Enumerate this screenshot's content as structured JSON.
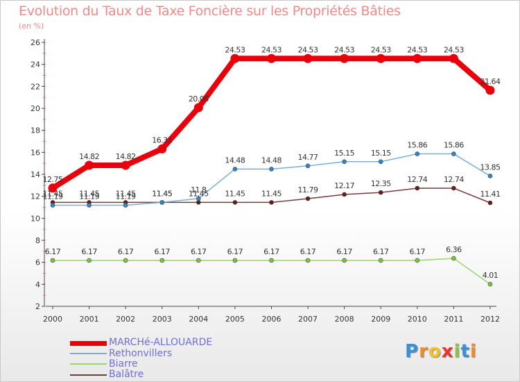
{
  "header": {
    "title": "Evolution du Taux de Taxe Foncière sur les Propriétés Bâties",
    "subtitle": "(en %)"
  },
  "logo": {
    "letters": [
      "P",
      "r",
      "o",
      "x",
      "i",
      "t",
      "i"
    ],
    "colors": [
      "#3a8fd6",
      "#f08a2a",
      "#f5c028",
      "#e8342c",
      "#8cc63f",
      "#3a8fd6",
      "#f08a2a"
    ]
  },
  "chart_data": {
    "type": "line",
    "title": "Evolution du Taux de Taxe Foncière sur les Propriétés Bâties",
    "ylabel": "(en %)",
    "xlabel": "",
    "ylim": [
      2,
      26
    ],
    "yticks": [
      2,
      4,
      6,
      8,
      10,
      12,
      14,
      16,
      18,
      20,
      22,
      24,
      26
    ],
    "grid": false,
    "x": [
      "2000",
      "2001",
      "2002",
      "2003",
      "2004",
      "2005",
      "2006",
      "2007",
      "2008",
      "2009",
      "2010",
      "2011",
      "2012"
    ],
    "series": [
      {
        "name": "MARCHé-ALLOUARDE",
        "color": "#e8000b",
        "values": [
          12.75,
          14.82,
          14.82,
          16.31,
          20.06,
          24.53,
          24.53,
          24.53,
          24.53,
          24.53,
          24.53,
          24.53,
          21.64
        ],
        "labels": [
          "12.75",
          "14.82",
          "14.82",
          "16.31",
          "20.06",
          "24.53",
          "24.53",
          "24.53",
          "24.53",
          "24.53",
          "24.53",
          "24.53",
          "21.64"
        ]
      },
      {
        "name": "Rethonvillers",
        "color": "#7aaed4",
        "marker": "#2f86c8",
        "values": [
          11.19,
          11.19,
          11.19,
          11.45,
          11.8,
          14.48,
          14.48,
          14.77,
          15.15,
          15.15,
          15.86,
          15.86,
          13.85
        ],
        "labels": [
          "11.19",
          "11.19",
          "11.19",
          "11.45",
          "11.8",
          "14.48",
          "14.48",
          "14.77",
          "15.15",
          "15.15",
          "15.86",
          "15.86",
          "13.85"
        ]
      },
      {
        "name": "Biarre",
        "color": "#9ad46a",
        "marker": "#7cc63c",
        "values": [
          6.17,
          6.17,
          6.17,
          6.17,
          6.17,
          6.17,
          6.17,
          6.17,
          6.17,
          6.17,
          6.17,
          6.36,
          4.01
        ],
        "labels": [
          "6.17",
          "6.17",
          "6.17",
          "6.17",
          "6.17",
          "6.17",
          "6.17",
          "6.17",
          "6.17",
          "6.17",
          "6.17",
          "6.36",
          "4.01"
        ]
      },
      {
        "name": "Balâtre",
        "color": "#7a3a3a",
        "marker": "#6a1a1a",
        "values": [
          11.45,
          11.45,
          11.45,
          11.45,
          11.45,
          11.45,
          11.45,
          11.79,
          12.17,
          12.35,
          12.74,
          12.74,
          11.41
        ],
        "labels": [
          "11.45",
          "11.45",
          "11.45",
          "11.45",
          "11.45",
          "11.45",
          "11.45",
          "11.79",
          "12.17",
          "12.35",
          "12.74",
          "12.74",
          "11.41"
        ]
      }
    ]
  }
}
